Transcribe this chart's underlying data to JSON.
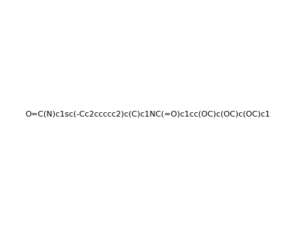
{
  "smiles": "O=C(N)c1sc(-Cc2ccccc2)c(C)c1NC(=O)c1cc(OC)c(OC)c(OC)c1",
  "title": "",
  "background_color": "#ffffff",
  "figsize": [
    4.06,
    3.18
  ],
  "dpi": 100
}
